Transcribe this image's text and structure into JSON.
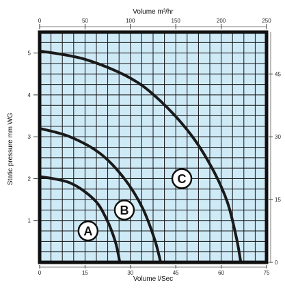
{
  "chart_data": {
    "type": "line",
    "title": "",
    "xlabel_top": "Volume m³/hr",
    "xlabel_bottom": "Volume l/Sec",
    "ylabel_left": "Static pressure mm WG",
    "xlim": [
      0,
      75
    ],
    "ylim": [
      0,
      5.5
    ],
    "top_ticks": [
      0,
      50,
      100,
      150,
      200,
      250
    ],
    "top_lim": [
      0,
      250
    ],
    "bottom_ticks": [
      0,
      15,
      30,
      45,
      60,
      75
    ],
    "left_ticks": [
      1,
      2,
      3,
      4,
      5
    ],
    "right_ticks": [
      0,
      15,
      30,
      45
    ],
    "right_lim": [
      0,
      55
    ],
    "grid": true,
    "background_color": "#cfeaf7",
    "grid_color": "#111111",
    "curve_color": "#1a1a1a",
    "series": [
      {
        "name": "A",
        "x": [
          0,
          10,
          18,
          22,
          25,
          26.5
        ],
        "y": [
          2.05,
          1.9,
          1.5,
          1.05,
          0.5,
          0
        ]
      },
      {
        "name": "B",
        "x": [
          0,
          10,
          20,
          28,
          34,
          38,
          40
        ],
        "y": [
          3.2,
          3.0,
          2.6,
          2.0,
          1.3,
          0.55,
          0
        ]
      },
      {
        "name": "C",
        "x": [
          0,
          15,
          30,
          40,
          50,
          57,
          62,
          65,
          66.5
        ],
        "y": [
          5.05,
          4.85,
          4.4,
          3.85,
          3.05,
          2.25,
          1.45,
          0.6,
          0
        ]
      }
    ],
    "curve_labels": [
      {
        "text": "A",
        "x": 16,
        "y": 0.75
      },
      {
        "text": "B",
        "x": 28,
        "y": 1.25
      },
      {
        "text": "C",
        "x": 47,
        "y": 2.0
      }
    ]
  }
}
